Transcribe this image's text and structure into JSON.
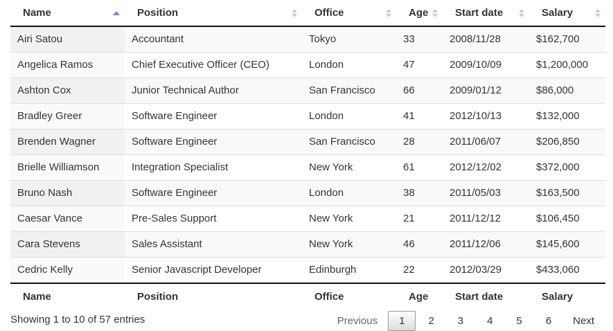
{
  "table": {
    "columns": [
      {
        "label": "Name",
        "sort": "asc"
      },
      {
        "label": "Position",
        "sort": "none"
      },
      {
        "label": "Office",
        "sort": "none"
      },
      {
        "label": "Age",
        "sort": "none"
      },
      {
        "label": "Start date",
        "sort": "none"
      },
      {
        "label": "Salary",
        "sort": "none"
      }
    ],
    "rows": [
      [
        "Airi Satou",
        "Accountant",
        "Tokyo",
        "33",
        "2008/11/28",
        "$162,700"
      ],
      [
        "Angelica Ramos",
        "Chief Executive Officer (CEO)",
        "London",
        "47",
        "2009/10/09",
        "$1,200,000"
      ],
      [
        "Ashton Cox",
        "Junior Technical Author",
        "San Francisco",
        "66",
        "2009/01/12",
        "$86,000"
      ],
      [
        "Bradley Greer",
        "Software Engineer",
        "London",
        "41",
        "2012/10/13",
        "$132,000"
      ],
      [
        "Brenden Wagner",
        "Software Engineer",
        "San Francisco",
        "28",
        "2011/06/07",
        "$206,850"
      ],
      [
        "Brielle Williamson",
        "Integration Specialist",
        "New York",
        "61",
        "2012/12/02",
        "$372,000"
      ],
      [
        "Bruno Nash",
        "Software Engineer",
        "London",
        "38",
        "2011/05/03",
        "$163,500"
      ],
      [
        "Caesar Vance",
        "Pre-Sales Support",
        "New York",
        "21",
        "2011/12/12",
        "$106,450"
      ],
      [
        "Cara Stevens",
        "Sales Assistant",
        "New York",
        "46",
        "2011/12/06",
        "$145,600"
      ],
      [
        "Cedric Kelly",
        "Senior Javascript Developer",
        "Edinburgh",
        "22",
        "2012/03/29",
        "$433,060"
      ]
    ]
  },
  "info": {
    "text": "Showing 1 to 10 of 57 entries"
  },
  "pagination": {
    "previous_label": "Previous",
    "pages": [
      "1",
      "2",
      "3",
      "4",
      "5",
      "6"
    ],
    "current_page": "1",
    "next_label": "Next"
  },
  "colors": {
    "sort_active": "#7d81d8",
    "sort_inactive": "#c9c9c9",
    "header_border": "#111111",
    "row_border": "#dddddd",
    "stripe_odd": "#f9f9f9",
    "stripe_odd_sorted": "#f1f1f1",
    "stripe_even_sorted": "#fafafa"
  }
}
